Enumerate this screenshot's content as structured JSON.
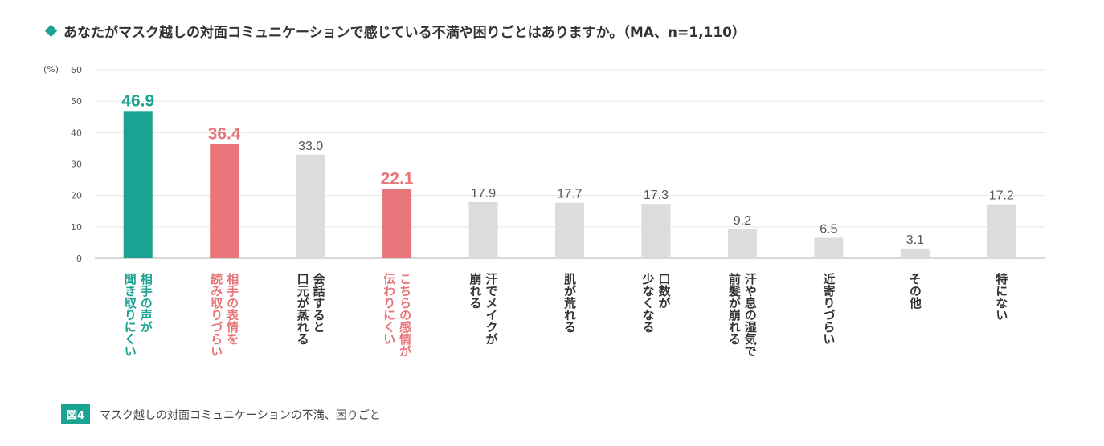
{
  "header": {
    "title": "あなたがマスク越しの対面コミュニケーションで感じている不満や困りごとはありますか。（MA、n=1,110）"
  },
  "footer": {
    "figure_label": "図4",
    "caption": "マスク越しの対面コミュニケーションの不満、困りごと"
  },
  "colors": {
    "accent_teal": "#1aa393",
    "accent_pink": "#e8757a",
    "bar_gray": "#dcdcdc",
    "text_gray": "#555555"
  },
  "chart_data": {
    "type": "bar",
    "title": "あなたがマスク越しの対面コミュニケーションで感じている不満や困りごとはありますか。（MA、n=1,110）",
    "ylabel": "(%)",
    "ylim": [
      0,
      60
    ],
    "yticks": [
      0,
      10,
      20,
      30,
      40,
      50,
      60
    ],
    "grid": true,
    "categories": [
      "相手の声が聞き取りにくい",
      "相手の表情を読み取りづらい",
      "会話すると口元が蒸れる",
      "こちらの感情が伝わりにくい",
      "汗でメイクが崩れる",
      "肌が荒れる",
      "口数が少なくなる",
      "汗や息の湿気で前髪が崩れる",
      "近寄りづらい",
      "その他",
      "特にない"
    ],
    "label_columns": [
      [
        "相手の声が",
        "聞き取りにくい"
      ],
      [
        "相手の表情を",
        "読み取りづらい"
      ],
      [
        "会話すると",
        "口元が蒸れる"
      ],
      [
        "こちらの感情が",
        "伝わりにくい"
      ],
      [
        "汗でメイクが",
        "崩れる"
      ],
      [
        "肌が荒れる"
      ],
      [
        "口数が",
        "少なくなる"
      ],
      [
        "汗や息の湿気で",
        "前髪が崩れる"
      ],
      [
        "近寄りづらい"
      ],
      [
        "その他"
      ],
      [
        "特にない"
      ]
    ],
    "values": [
      46.9,
      36.4,
      33.0,
      22.1,
      17.9,
      17.7,
      17.3,
      9.2,
      6.5,
      3.1,
      17.2
    ],
    "value_labels": [
      "46.9",
      "36.4",
      "33.0",
      "22.1",
      "17.9",
      "17.7",
      "17.3",
      "9.2",
      "6.5",
      "3.1",
      "17.2"
    ],
    "highlight": [
      "teal",
      "pink",
      "gray",
      "pink",
      "gray",
      "gray",
      "gray",
      "gray",
      "gray",
      "gray",
      "gray"
    ]
  }
}
